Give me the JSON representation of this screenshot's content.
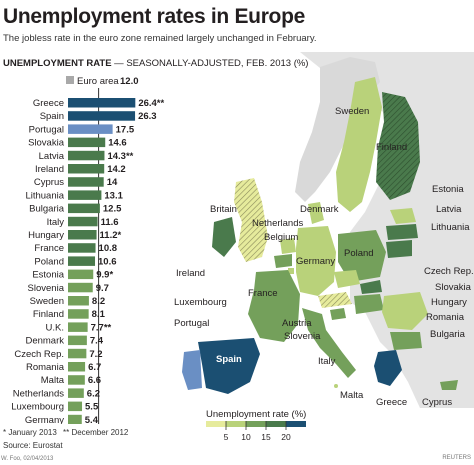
{
  "title": "Unemployment rates in Europe",
  "subtitle": "The jobless rate in the euro zone remained largely unchanged in February.",
  "rate_heading_bold": "UNEMPLOYMENT RATE",
  "rate_heading_rest": " — SEASONALLY-ADJUSTED, FEB. 2013 (%)",
  "footnote_1": "* January 2013",
  "footnote_2": "** December 2012",
  "source": "Source: Eurostat",
  "credit": "W. Foo, 02/04/2013",
  "logo": "REUTERS",
  "colors": {
    "dark": "#1b4f72",
    "mid_dark": "#4a7a4c",
    "mid": "#74a05b",
    "light": "#b9d27a",
    "lightest": "#e6eb9c",
    "euro_area": "#6a8fc4",
    "hatch": "#a9a9a9",
    "sea": "#ffffff"
  },
  "chart_data": {
    "type": "bar",
    "title": "UNEMPLOYMENT RATE — SEASONALLY-ADJUSTED, FEB. 2013 (%)",
    "reference": {
      "label": "Euro area",
      "value": 12.0,
      "value_label": "12.0"
    },
    "categories": [
      "Greece",
      "Spain",
      "Portugal",
      "Slovakia",
      "Latvia",
      "Ireland",
      "Cyprus",
      "Lithuania",
      "Bulgaria",
      "Italy",
      "Hungary",
      "France",
      "Poland",
      "Estonia",
      "Slovenia",
      "Sweden",
      "Finland",
      "U.K.",
      "Denmark",
      "Czech Rep.",
      "Romania",
      "Malta",
      "Netherlands",
      "Luxembourg",
      "Germany",
      "Austria"
    ],
    "values": [
      26.4,
      26.3,
      17.5,
      14.6,
      14.3,
      14.2,
      14,
      13.1,
      12.5,
      11.6,
      11.2,
      10.8,
      10.6,
      9.9,
      9.7,
      8.2,
      8.1,
      7.7,
      7.4,
      7.2,
      6.7,
      6.6,
      6.2,
      5.5,
      5.4,
      4.8
    ],
    "value_labels": [
      "26.4**",
      "26.3",
      "17.5",
      "14.6",
      "14.3**",
      "14.2",
      "14",
      "13.1",
      "12.5",
      "11.6",
      "11.2*",
      "10.8",
      "10.6",
      "9.9*",
      "9.7",
      "8.2",
      "8.1",
      "7.7**",
      "7.4",
      "7.2",
      "6.7",
      "6.6",
      "6.2",
      "5.5",
      "5.4",
      "4.8"
    ],
    "xlim": [
      0,
      30
    ]
  },
  "map": {
    "labels": [
      "Sweden",
      "Finland",
      "Estonia",
      "Latvia",
      "Lithuania",
      "Britain",
      "Denmark",
      "Netherlands",
      "Belgium",
      "Ireland",
      "Germany",
      "Poland",
      "Czech Rep.",
      "Slovakia",
      "Hungary",
      "Luxembourg",
      "France",
      "Austria",
      "Slovenia",
      "Romania",
      "Bulgaria",
      "Portugal",
      "Spain",
      "Italy",
      "Malta",
      "Greece",
      "Cyprus"
    ]
  },
  "legend": {
    "title": "Unemployment rate (%)",
    "ticks": [
      "5",
      "10",
      "15",
      "20"
    ]
  }
}
